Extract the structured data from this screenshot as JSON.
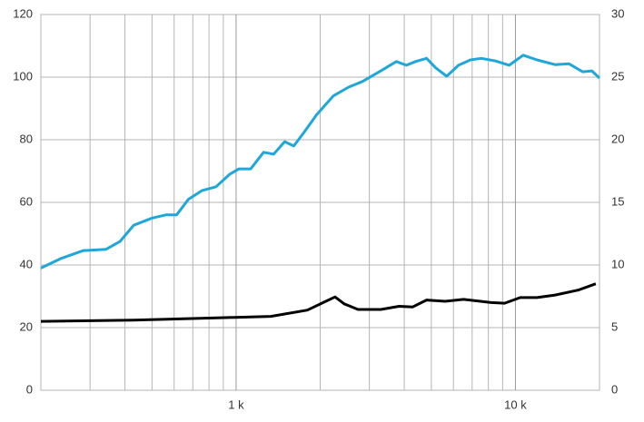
{
  "chart_data": {
    "type": "line",
    "xscale": "log",
    "xlim": [
      200,
      20000
    ],
    "xticks": [
      {
        "value": 1000,
        "label": "1 k"
      },
      {
        "value": 10000,
        "label": "10 k"
      }
    ],
    "xminor": [
      200,
      300,
      400,
      500,
      600,
      700,
      800,
      900,
      2000,
      3000,
      4000,
      5000,
      6000,
      7000,
      8000,
      9000,
      20000
    ],
    "ylim": [
      0,
      120
    ],
    "yticks": [
      0,
      20,
      40,
      60,
      80,
      100,
      120
    ],
    "y2lim": [
      0,
      30
    ],
    "y2ticks": [
      0,
      5,
      10,
      15,
      20,
      25,
      30
    ],
    "grid": true,
    "series": [
      {
        "color": "#1ea7d8",
        "x": [
          200,
          235,
          284,
          342,
          384,
          430,
          500,
          560,
          612,
          675,
          756,
          847,
          949,
          1023,
          1128,
          1254,
          1363,
          1492,
          1609,
          1748,
          1942,
          2228,
          2531,
          2834,
          3297,
          3746,
          4070,
          4390,
          4807,
          5181,
          5674,
          6254,
          6900,
          7558,
          8470,
          9500,
          10660,
          11950,
          13870,
          15530,
          17410,
          18780,
          20000
        ],
        "values": [
          39,
          42,
          44.6,
          45,
          47.5,
          52.7,
          55,
          56,
          56,
          61,
          63.8,
          65,
          69,
          70.7,
          70.7,
          76,
          75.4,
          79.4,
          78,
          82.3,
          88,
          94,
          96.8,
          98.6,
          102,
          105,
          103.8,
          105,
          106,
          103,
          100.3,
          103.8,
          105.5,
          106,
          105.2,
          103.8,
          107,
          105.5,
          104,
          104.3,
          101.7,
          102,
          99.7
        ]
      },
      {
        "color": "#000000",
        "axis": "y2",
        "x": [
          200,
          430,
          913,
          1332,
          1801,
          2095,
          2262,
          2437,
          2730,
          3297,
          3835,
          4290,
          4807,
          5603,
          6526,
          8193,
          9151,
          10400,
          11950,
          13870,
          16800,
          19400
        ],
        "values": [
          5.5,
          5.6,
          5.8,
          5.9,
          6.4,
          7.1,
          7.45,
          6.9,
          6.45,
          6.45,
          6.7,
          6.65,
          7.2,
          7.1,
          7.25,
          7.0,
          6.95,
          7.4,
          7.4,
          7.6,
          8.0,
          8.5
        ]
      }
    ]
  }
}
